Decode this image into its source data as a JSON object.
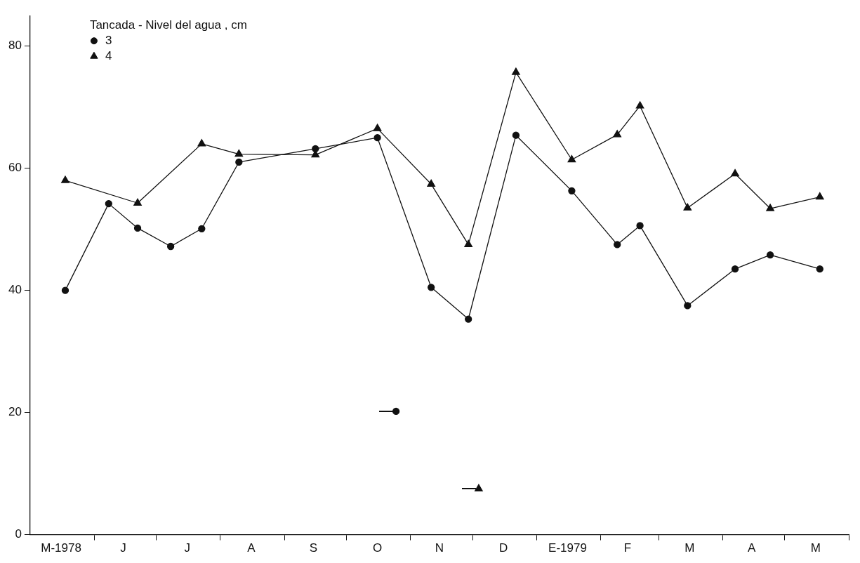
{
  "chart_data": {
    "type": "line",
    "legend_title": "Tancada - Nivel del agua , cm",
    "legend": "top left",
    "grid": false,
    "xlim": [
      "1978-05-01",
      "1979-06-01"
    ],
    "ylim": [
      0,
      85
    ],
    "yticks": [
      0,
      20,
      40,
      60,
      80
    ],
    "xticks": [
      {
        "value": "1978-05-16",
        "label": "M-1978"
      },
      {
        "value": "1978-06-15",
        "label": "J"
      },
      {
        "value": "1978-07-16",
        "label": "J"
      },
      {
        "value": "1978-08-16",
        "label": "A"
      },
      {
        "value": "1978-09-15",
        "label": "S"
      },
      {
        "value": "1978-10-16",
        "label": "O"
      },
      {
        "value": "1978-11-15",
        "label": "N"
      },
      {
        "value": "1978-12-16",
        "label": "D"
      },
      {
        "value": "1979-01-16",
        "label": "E-1979"
      },
      {
        "value": "1979-02-14",
        "label": "F"
      },
      {
        "value": "1979-03-16",
        "label": "M"
      },
      {
        "value": "1979-04-15",
        "label": "A"
      },
      {
        "value": "1979-05-16",
        "label": "M"
      },
      {
        "value": "1978-06-01",
        "label": null
      },
      {
        "value": "1978-07-01",
        "label": null
      },
      {
        "value": "1978-08-01",
        "label": null
      },
      {
        "value": "1978-09-01",
        "label": null
      },
      {
        "value": "1978-10-01",
        "label": null
      },
      {
        "value": "1978-11-01",
        "label": null
      },
      {
        "value": "1978-12-01",
        "label": null
      },
      {
        "value": "1979-01-01",
        "label": null
      },
      {
        "value": "1979-02-01",
        "label": null
      },
      {
        "value": "1979-03-01",
        "label": null
      },
      {
        "value": "1979-04-01",
        "label": null
      },
      {
        "value": "1979-05-01",
        "label": null
      },
      {
        "value": "1979-06-01",
        "label": null
      }
    ],
    "series": [
      {
        "name": "3",
        "type": "line",
        "marker": "circle",
        "color": "#111111",
        "x": [
          "1978-05-18",
          "1978-06-08",
          "1978-06-22",
          "1978-07-08",
          "1978-07-23",
          "1978-08-10",
          "1978-09-16",
          "1978-10-16",
          "1978-11-11",
          "1978-11-29",
          "1978-12-22",
          "1979-01-18",
          "1979-02-09",
          "1979-02-20",
          "1979-03-15",
          "1979-04-07",
          "1979-04-24",
          "1979-05-18"
        ],
        "values": [
          40,
          54.2,
          50.2,
          47.2,
          50.1,
          61,
          63.2,
          65,
          40.5,
          35.3,
          65.4,
          56.3,
          47.5,
          50.6,
          37.5,
          43.5,
          45.8,
          43.5
        ]
      },
      {
        "name": "4",
        "type": "line",
        "marker": "triangle",
        "color": "#111111",
        "x": [
          "1978-05-18",
          "1978-06-22",
          "1978-07-23",
          "1978-08-10",
          "1978-09-16",
          "1978-10-16",
          "1978-11-11",
          "1978-11-29",
          "1978-12-22",
          "1979-01-18",
          "1979-02-09",
          "1979-02-20",
          "1979-03-15",
          "1979-04-07",
          "1979-04-24",
          "1979-05-18"
        ],
        "values": [
          58,
          54.3,
          64,
          62.3,
          62.2,
          66.5,
          57.4,
          47.5,
          75.7,
          61.4,
          65.5,
          70.2,
          53.5,
          59.1,
          53.4,
          55.3
        ]
      },
      {
        "type": "scatter",
        "marker": "circle",
        "color": "#111111",
        "x": [
          "1978-10-25"
        ],
        "values": [
          20.2
        ]
      },
      {
        "type": "scatter",
        "marker": "triangle",
        "color": "#111111",
        "x": [
          "1978-12-04"
        ],
        "values": [
          7.5
        ]
      }
    ]
  }
}
